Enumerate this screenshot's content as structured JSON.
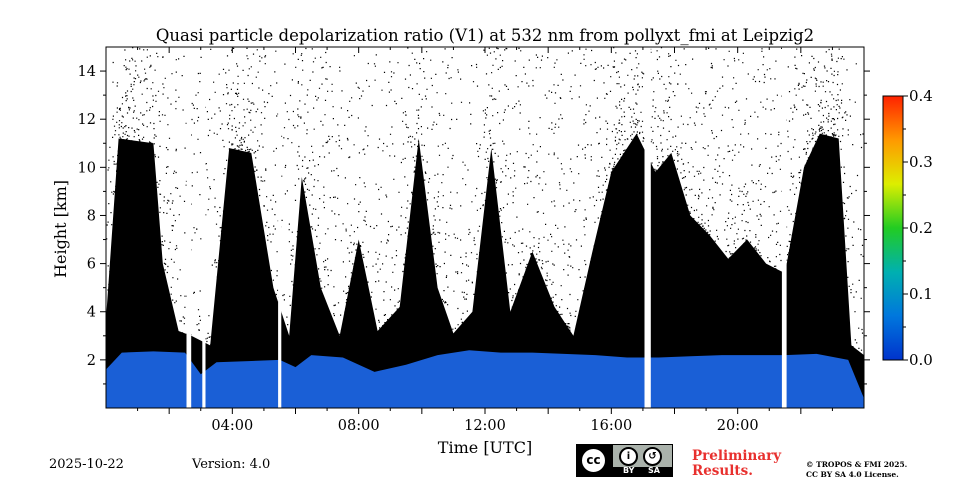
{
  "chart_data": {
    "type": "heatmap",
    "title": "Quasi particle depolarization ratio (V1) at 532 nm from pollyxt_fmi at Leipzig2",
    "xlabel": "Time [UTC]",
    "ylabel": "Height [km]",
    "xlim_hours": [
      0,
      24
    ],
    "ylim_km": [
      0,
      15
    ],
    "x_ticks": [
      {
        "value": 4,
        "label": "04:00"
      },
      {
        "value": 8,
        "label": "08:00"
      },
      {
        "value": 12,
        "label": "12:00"
      },
      {
        "value": 16,
        "label": "16:00"
      },
      {
        "value": 20,
        "label": "20:00"
      }
    ],
    "y_ticks": [
      {
        "value": 2,
        "label": "2"
      },
      {
        "value": 4,
        "label": "4"
      },
      {
        "value": 6,
        "label": "6"
      },
      {
        "value": 8,
        "label": "8"
      },
      {
        "value": 10,
        "label": "10"
      },
      {
        "value": 12,
        "label": "12"
      },
      {
        "value": 14,
        "label": "14"
      }
    ],
    "colorbar": {
      "range": [
        0.0,
        0.4
      ],
      "ticks": [
        {
          "value": 0.0,
          "label": "0.0"
        },
        {
          "value": 0.1,
          "label": "0.1"
        },
        {
          "value": 0.2,
          "label": "0.2"
        },
        {
          "value": 0.3,
          "label": "0.3"
        },
        {
          "value": 0.4,
          "label": "0.4"
        }
      ],
      "colors": [
        "#0033cc",
        "#0077dd",
        "#00b0b0",
        "#22cc22",
        "#ddee00",
        "#ff9900",
        "#ff2200"
      ]
    },
    "colors": {
      "low_layer": "#1a5fd6",
      "invalid_signal": "#000000",
      "no_data": "#ffffff"
    },
    "low_layer_top_km": [
      [
        0.0,
        1.6
      ],
      [
        0.5,
        2.3
      ],
      [
        1.5,
        2.35
      ],
      [
        2.5,
        2.3
      ],
      [
        3.0,
        1.4
      ],
      [
        3.5,
        1.9
      ],
      [
        4.5,
        1.95
      ],
      [
        5.5,
        2.0
      ],
      [
        6.0,
        1.7
      ],
      [
        6.5,
        2.2
      ],
      [
        7.5,
        2.1
      ],
      [
        8.5,
        1.5
      ],
      [
        9.5,
        1.8
      ],
      [
        10.5,
        2.2
      ],
      [
        11.5,
        2.4
      ],
      [
        12.5,
        2.3
      ],
      [
        13.5,
        2.3
      ],
      [
        14.5,
        2.25
      ],
      [
        15.5,
        2.2
      ],
      [
        16.5,
        2.1
      ],
      [
        17.5,
        2.1
      ],
      [
        18.5,
        2.15
      ],
      [
        19.5,
        2.2
      ],
      [
        20.5,
        2.2
      ],
      [
        21.5,
        2.2
      ],
      [
        22.5,
        2.25
      ],
      [
        23.5,
        2.0
      ],
      [
        24.0,
        0.4
      ]
    ],
    "black_region_top_km": [
      [
        0.0,
        3.7
      ],
      [
        0.4,
        11.2
      ],
      [
        1.5,
        11.0
      ],
      [
        1.8,
        6.0
      ],
      [
        2.3,
        3.2
      ],
      [
        2.7,
        3.0
      ],
      [
        3.3,
        2.6
      ],
      [
        3.9,
        10.8
      ],
      [
        4.6,
        10.6
      ],
      [
        5.3,
        5.0
      ],
      [
        5.8,
        3.0
      ],
      [
        6.2,
        9.6
      ],
      [
        6.8,
        5.0
      ],
      [
        7.4,
        3.0
      ],
      [
        8.0,
        7.0
      ],
      [
        8.6,
        3.2
      ],
      [
        9.3,
        4.2
      ],
      [
        9.9,
        11.2
      ],
      [
        10.5,
        5.0
      ],
      [
        11.0,
        3.1
      ],
      [
        11.6,
        4.0
      ],
      [
        12.2,
        10.8
      ],
      [
        12.8,
        4.0
      ],
      [
        13.5,
        6.5
      ],
      [
        14.2,
        4.2
      ],
      [
        14.8,
        3.0
      ],
      [
        15.4,
        6.5
      ],
      [
        16.0,
        9.8
      ],
      [
        16.8,
        11.4
      ],
      [
        17.4,
        9.8
      ],
      [
        17.9,
        10.6
      ],
      [
        18.5,
        8.0
      ],
      [
        19.1,
        7.2
      ],
      [
        19.7,
        6.2
      ],
      [
        20.3,
        7.0
      ],
      [
        20.9,
        6.0
      ],
      [
        21.5,
        5.6
      ],
      [
        22.1,
        10.0
      ],
      [
        22.6,
        11.4
      ],
      [
        23.2,
        11.2
      ],
      [
        23.6,
        2.6
      ],
      [
        24.0,
        2.2
      ]
    ],
    "gaps_hours": [
      [
        2.55,
        2.7
      ],
      [
        3.05,
        3.15
      ],
      [
        5.45,
        5.55
      ],
      [
        17.05,
        17.25
      ],
      [
        21.4,
        21.55
      ]
    ]
  },
  "footer": {
    "date": "2025-10-22",
    "version": "Version: 4.0",
    "preliminary_line1": "Preliminary",
    "preliminary_line2": "Results.",
    "copyright_line1": "© TROPOS & FMI 2025.",
    "copyright_line2": "CC BY SA 4.0 License.",
    "license_badge": {
      "cc": "cc",
      "by_label": "BY",
      "sa_label": "SA"
    }
  }
}
